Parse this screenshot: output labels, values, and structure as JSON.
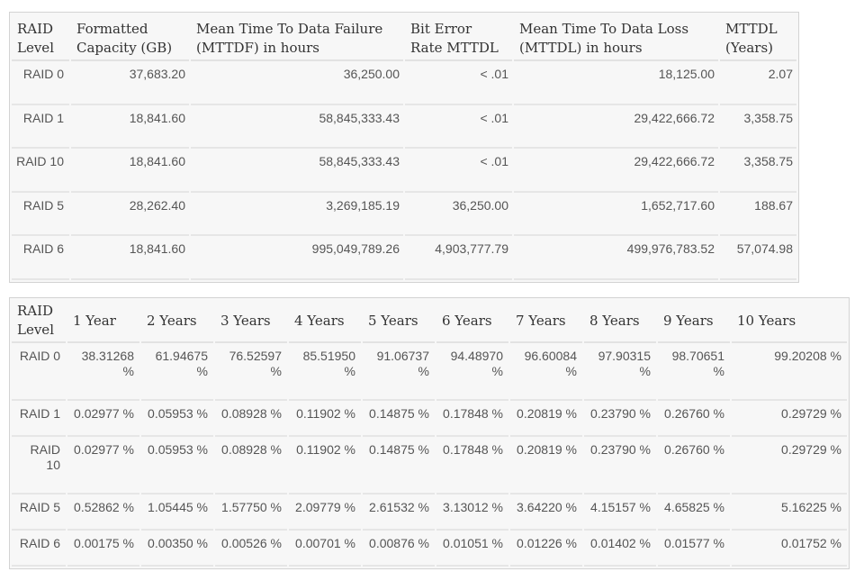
{
  "table1": {
    "headers": [
      "RAID Level",
      "Formatted Capacity (GB)",
      "Mean Time To Data Failure (MTTDF) in hours",
      "Bit Error Rate MTTDL",
      "Mean Time To Data Loss (MTTDL) in hours",
      "MTTDL (Years)"
    ],
    "rows": [
      [
        "RAID 0",
        "37,683.20",
        "36,250.00",
        "< .01",
        "18,125.00",
        "2.07"
      ],
      [
        "RAID 1",
        "18,841.60",
        "58,845,333.43",
        "< .01",
        "29,422,666.72",
        "3,358.75"
      ],
      [
        "RAID 10",
        "18,841.60",
        "58,845,333.43",
        "< .01",
        "29,422,666.72",
        "3,358.75"
      ],
      [
        "RAID 5",
        "28,262.40",
        "3,269,185.19",
        "36,250.00",
        "1,652,717.60",
        "188.67"
      ],
      [
        "RAID 6",
        "18,841.60",
        "995,049,789.26",
        "4,903,777.79",
        "499,976,783.52",
        "57,074.98"
      ]
    ]
  },
  "table2": {
    "headers": [
      "RAID Level",
      "1 Year",
      "2 Years",
      "3 Years",
      "4 Years",
      "5 Years",
      "6 Years",
      "7 Years",
      "8 Years",
      "9 Years",
      "10 Years"
    ],
    "rows": [
      [
        "RAID 0",
        "38.31268 %",
        "61.94675 %",
        "76.52597 %",
        "85.51950 %",
        "91.06737 %",
        "94.48970 %",
        "96.60084 %",
        "97.90315 %",
        "98.70651 %",
        "99.20208 %"
      ],
      [
        "RAID 1",
        "0.02977 %",
        "0.05953 %",
        "0.08928 %",
        "0.11902 %",
        "0.14875 %",
        "0.17848 %",
        "0.20819 %",
        "0.23790 %",
        "0.26760 %",
        "0.29729 %"
      ],
      [
        "RAID 10",
        "0.02977 %",
        "0.05953 %",
        "0.08928 %",
        "0.11902 %",
        "0.14875 %",
        "0.17848 %",
        "0.20819 %",
        "0.23790 %",
        "0.26760 %",
        "0.29729 %"
      ],
      [
        "RAID 5",
        "0.52862 %",
        "1.05445 %",
        "1.57750 %",
        "2.09779 %",
        "2.61532 %",
        "3.13012 %",
        "3.64220 %",
        "4.15157 %",
        "4.65825 %",
        "5.16225 %"
      ],
      [
        "RAID 6",
        "0.00175 %",
        "0.00350 %",
        "0.00526 %",
        "0.00701 %",
        "0.00876 %",
        "0.01051 %",
        "0.01226 %",
        "0.01402 %",
        "0.01577 %",
        "0.01752 %"
      ]
    ]
  }
}
